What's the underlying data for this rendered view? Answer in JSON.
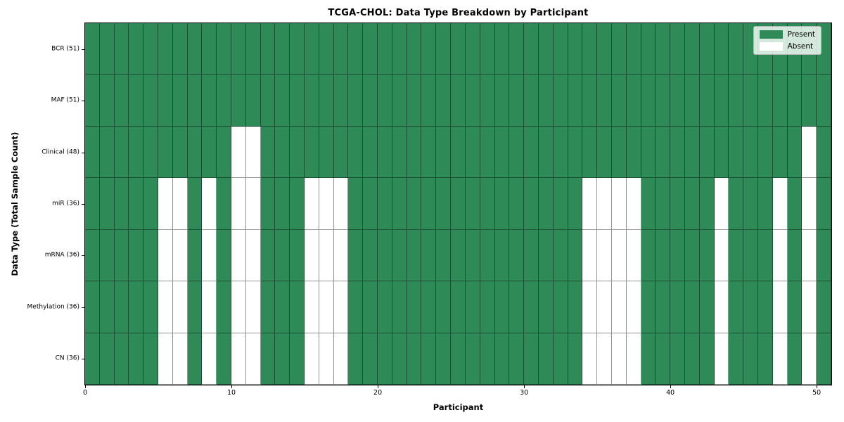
{
  "chart_data": {
    "type": "heatmap",
    "title": "TCGA-CHOL: Data Type Breakdown by Participant",
    "xlabel": "Participant",
    "ylabel": "Data Type (Total Sample Count)",
    "x_ticks": [
      0,
      10,
      20,
      30,
      40,
      50
    ],
    "x_range": [
      0,
      51
    ],
    "n_participants": 51,
    "grid": "cell-borders",
    "colors": {
      "present": "#2e8b57",
      "absent": "#ffffff"
    },
    "legend": {
      "position": "upper right",
      "entries": [
        {
          "label": "Present",
          "color": "#2e8b57"
        },
        {
          "label": "Absent",
          "color": "#ffffff"
        }
      ]
    },
    "rows": [
      {
        "label": "BCR (51)",
        "data_type": "BCR",
        "present_total": 51,
        "absent_participants": []
      },
      {
        "label": "MAF (51)",
        "data_type": "MAF",
        "present_total": 51,
        "absent_participants": []
      },
      {
        "label": "Clinical (48)",
        "data_type": "Clinical",
        "present_total": 48,
        "absent_participants": [
          10,
          11,
          49
        ]
      },
      {
        "label": "miR (36)",
        "data_type": "miR",
        "present_total": 36,
        "absent_participants": [
          5,
          6,
          8,
          10,
          11,
          15,
          16,
          17,
          34,
          35,
          36,
          37,
          43,
          47,
          49
        ]
      },
      {
        "label": "mRNA (36)",
        "data_type": "mRNA",
        "present_total": 36,
        "absent_participants": [
          5,
          6,
          8,
          10,
          11,
          15,
          16,
          17,
          34,
          35,
          36,
          37,
          43,
          47,
          49
        ]
      },
      {
        "label": "Methylation (36)",
        "data_type": "Methylation",
        "present_total": 36,
        "absent_participants": [
          5,
          6,
          8,
          10,
          11,
          15,
          16,
          17,
          34,
          35,
          36,
          37,
          43,
          47,
          49
        ]
      },
      {
        "label": "CN (36)",
        "data_type": "CN",
        "present_total": 36,
        "absent_participants": [
          5,
          6,
          8,
          10,
          11,
          15,
          16,
          17,
          34,
          35,
          36,
          37,
          43,
          47,
          49
        ]
      }
    ]
  }
}
